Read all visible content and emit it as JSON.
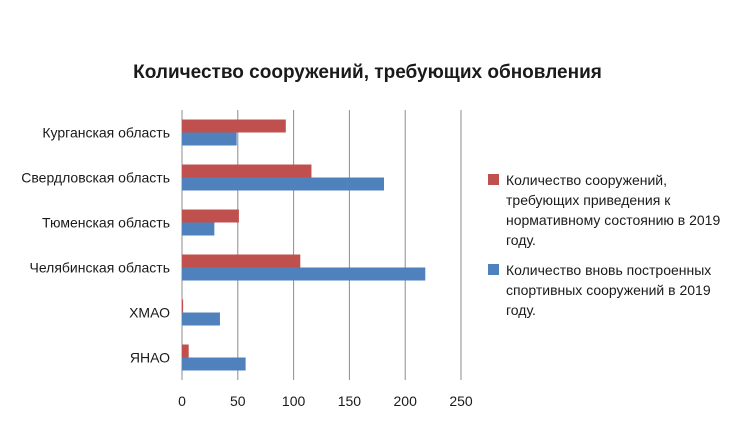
{
  "chart_data": {
    "type": "bar",
    "orientation": "horizontal",
    "title": "Количество сооружений, требующих обновления",
    "categories": [
      "Курганская область",
      "Свердловская область",
      "Тюменская область",
      "Челябинская область",
      "ХМАО",
      "ЯНАО"
    ],
    "series": [
      {
        "name": "Количество сооружений, требующих приведения к нормативному состоянию в 2019 году.",
        "color": "#c0504d",
        "values": [
          93,
          116,
          51,
          106,
          1,
          6
        ]
      },
      {
        "name": "Количество вновь построенных спортивных сооружений в 2019 году.",
        "color": "#4f81bd",
        "values": [
          49,
          181,
          29,
          218,
          34,
          57
        ]
      }
    ],
    "xlim": [
      0,
      250
    ],
    "xticks": [
      0,
      50,
      100,
      150,
      200,
      250
    ],
    "grid": true,
    "legend_position": "right"
  }
}
